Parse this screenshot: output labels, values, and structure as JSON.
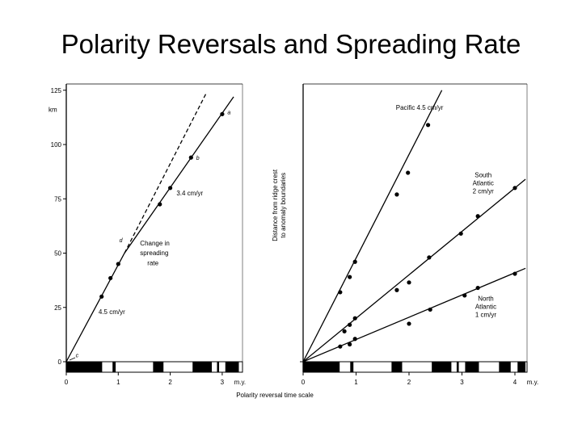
{
  "page_title": "Polarity Reversals and Spreading Rate",
  "chart_data": [
    {
      "type": "line",
      "panel": "left",
      "ylabel": "km",
      "ylim": [
        0,
        125
      ],
      "xlim": [
        0,
        3.6
      ],
      "yticks": [
        0,
        25,
        50,
        75,
        100,
        125
      ],
      "xticks": [
        0,
        1,
        2,
        3
      ],
      "x_unit_label": "m.y.",
      "series": [
        {
          "line": "solid",
          "line_points": [
            [
              0,
              0
            ],
            [
              1.12,
              50
            ],
            [
              3.22,
              122
            ]
          ]
        },
        {
          "line": "dashed",
          "line_points": [
            [
              1.12,
              50
            ],
            [
              2.7,
              124
            ]
          ]
        }
      ],
      "points": [
        [
          0.68,
          30
        ],
        [
          0.85,
          38.5
        ],
        [
          1,
          45
        ],
        [
          1.8,
          72.5
        ],
        [
          2,
          80
        ],
        [
          2.4,
          94
        ],
        [
          3,
          114
        ]
      ],
      "point_labels": [
        {
          "text": "a",
          "at": [
            3.1,
            114
          ]
        },
        {
          "text": "b",
          "at": [
            2.5,
            93
          ]
        },
        {
          "text": "c",
          "at": [
            0.18,
            2
          ]
        },
        {
          "text": "d",
          "at": [
            1.02,
            55
          ]
        }
      ],
      "annotations": [
        {
          "text": "3.4 cm/yr",
          "at": [
            2.12,
            76.5
          ]
        },
        {
          "text": "Change in",
          "at": [
            1.42,
            53.5
          ]
        },
        {
          "text": "spreading",
          "at": [
            1.42,
            49
          ]
        },
        {
          "text": "rate",
          "at": [
            1.56,
            44.5
          ]
        },
        {
          "text": "4.5 cm/yr",
          "at": [
            0.62,
            22
          ]
        }
      ]
    },
    {
      "type": "scatter",
      "panel": "right",
      "ylabel": "Distance from ridge crest to anomaly boundaries",
      "ylim": [
        0,
        125
      ],
      "xlim": [
        0,
        4.2
      ],
      "xticks": [
        0,
        1,
        2,
        3,
        4
      ],
      "x_unit_label": "m.y.",
      "series": [
        {
          "name": "Pacific",
          "label_lines": [
            "Pacific 4.5 cm/yr"
          ],
          "line_points": [
            [
              0,
              0
            ],
            [
              2.62,
              125
            ]
          ],
          "points": [
            [
              0.7,
              32
            ],
            [
              0.88,
              39
            ],
            [
              0.98,
              46
            ],
            [
              1.77,
              77
            ],
            [
              1.98,
              87
            ],
            [
              2.36,
              109
            ]
          ]
        },
        {
          "name": "South Atlantic",
          "label_lines": [
            "South",
            "Atlantic",
            "2 cm/yr"
          ],
          "line_points": [
            [
              0,
              0
            ],
            [
              4.2,
              84
            ]
          ],
          "points": [
            [
              1.77,
              33
            ],
            [
              2,
              36.5
            ],
            [
              2.38,
              48
            ],
            [
              2.98,
              59
            ],
            [
              3.3,
              67
            ],
            [
              4,
              80
            ]
          ]
        },
        {
          "name": "North Atlantic",
          "label_lines": [
            "North",
            "Atlantic",
            "1 cm/yr"
          ],
          "line_points": [
            [
              0,
              0
            ],
            [
              4.2,
              43
            ]
          ],
          "points": [
            [
              0.7,
              7
            ],
            [
              0.78,
              14
            ],
            [
              0.88,
              17
            ],
            [
              0.88,
              8
            ],
            [
              0.98,
              20
            ],
            [
              0.98,
              10.5
            ],
            [
              2,
              17.5
            ],
            [
              2.4,
              24
            ],
            [
              3.05,
              30.5
            ],
            [
              3.3,
              34
            ],
            [
              4,
              40.5
            ]
          ]
        }
      ]
    }
  ],
  "polarity_scale": {
    "label": "Polarity reversal time scale",
    "normal_intervals_my": [
      [
        0,
        0.69
      ],
      [
        0.89,
        0.95
      ],
      [
        1.67,
        1.87
      ],
      [
        2.43,
        2.8
      ],
      [
        2.9,
        2.94
      ],
      [
        3.06,
        3.32
      ],
      [
        3.7,
        3.92
      ],
      [
        4.05,
        4.2
      ]
    ]
  }
}
